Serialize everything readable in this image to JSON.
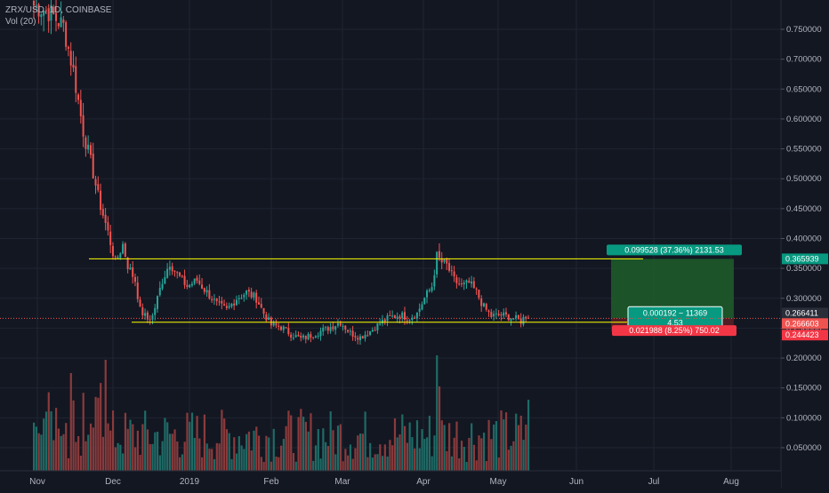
{
  "legend": {
    "symbol_line": "ZRX/USD, 1D, COINBASE",
    "volume_label": "Vol (20)"
  },
  "colors": {
    "background": "#131722",
    "grid": "#1f2433",
    "up": "#26a69a",
    "down": "#ef5350",
    "up_volume": "#1f6b66",
    "down_volume": "#8a3b3c",
    "support_resistance": "#ffff00",
    "target_zone": "#1e5a2a",
    "stop_zone": "#5a1e25",
    "target_tag": "#089981",
    "stop_tag": "#f23645",
    "price_marker": "#ef5350",
    "axis_text": "#b2b5be"
  },
  "chart_data": {
    "type": "candlestick",
    "price_axis_ticks": [
      "0.750000",
      "0.700000",
      "0.650000",
      "0.600000",
      "0.550000",
      "0.500000",
      "0.450000",
      "0.400000",
      "0.350000",
      "0.300000",
      "0.250000",
      "0.200000",
      "0.150000",
      "0.100000",
      "0.050000"
    ],
    "price_axis_values": [
      0.75,
      0.7,
      0.65,
      0.6,
      0.55,
      0.5,
      0.45,
      0.4,
      0.35,
      0.3,
      0.25,
      0.2,
      0.15,
      0.1,
      0.05
    ],
    "time_axis_labels": [
      "Nov",
      "Dec",
      "2019",
      "Feb",
      "Mar",
      "Apr",
      "May",
      "Jun",
      "Jul",
      "Aug"
    ],
    "price_markers": {
      "target_price": "0.365939",
      "current_price": "0.266411",
      "entry_price": "0.266603",
      "stop_price": "0.244423"
    },
    "position_tool": {
      "target_label": "0.099528 (37.36%) 2131.53",
      "center_label_line1": "0.000192 ~ 11369",
      "center_label_line2": "4.53",
      "stop_label": "0.021988 (8.25%) 750.02",
      "target": 0.365939,
      "entry": 0.266603,
      "stop": 0.244423
    },
    "horizontal_levels": [
      {
        "name": "resistance",
        "value": 0.366
      },
      {
        "name": "support",
        "value": 0.26
      }
    ],
    "price_path": [
      [
        0,
        0.79
      ],
      [
        6,
        0.78
      ],
      [
        12,
        0.755
      ],
      [
        16,
        0.68
      ],
      [
        20,
        0.58
      ],
      [
        24,
        0.51
      ],
      [
        26,
        0.47
      ],
      [
        30,
        0.41
      ],
      [
        33,
        0.36
      ],
      [
        36,
        0.39
      ],
      [
        38,
        0.355
      ],
      [
        41,
        0.33
      ],
      [
        43,
        0.28
      ],
      [
        46,
        0.265
      ],
      [
        48,
        0.27
      ],
      [
        52,
        0.33
      ],
      [
        55,
        0.36
      ],
      [
        58,
        0.34
      ],
      [
        62,
        0.32
      ],
      [
        66,
        0.33
      ],
      [
        70,
        0.31
      ],
      [
        74,
        0.29
      ],
      [
        78,
        0.28
      ],
      [
        82,
        0.3
      ],
      [
        86,
        0.31
      ],
      [
        90,
        0.3
      ],
      [
        93,
        0.275
      ],
      [
        96,
        0.255
      ],
      [
        100,
        0.252
      ],
      [
        104,
        0.24
      ],
      [
        108,
        0.232
      ],
      [
        112,
        0.238
      ],
      [
        116,
        0.245
      ],
      [
        120,
        0.252
      ],
      [
        124,
        0.26
      ],
      [
        128,
        0.242
      ],
      [
        132,
        0.235
      ],
      [
        136,
        0.245
      ],
      [
        140,
        0.258
      ],
      [
        144,
        0.268
      ],
      [
        148,
        0.272
      ],
      [
        152,
        0.268
      ],
      [
        155,
        0.275
      ],
      [
        158,
        0.3
      ],
      [
        161,
        0.32
      ],
      [
        163,
        0.37
      ],
      [
        165,
        0.36
      ],
      [
        167,
        0.355
      ],
      [
        170,
        0.33
      ],
      [
        173,
        0.32
      ],
      [
        176,
        0.325
      ],
      [
        179,
        0.31
      ],
      [
        182,
        0.285
      ],
      [
        185,
        0.27
      ],
      [
        189,
        0.272
      ],
      [
        193,
        0.268
      ],
      [
        197,
        0.262
      ],
      [
        200,
        0.275
      ]
    ],
    "volume_series_max": 0.205
  }
}
